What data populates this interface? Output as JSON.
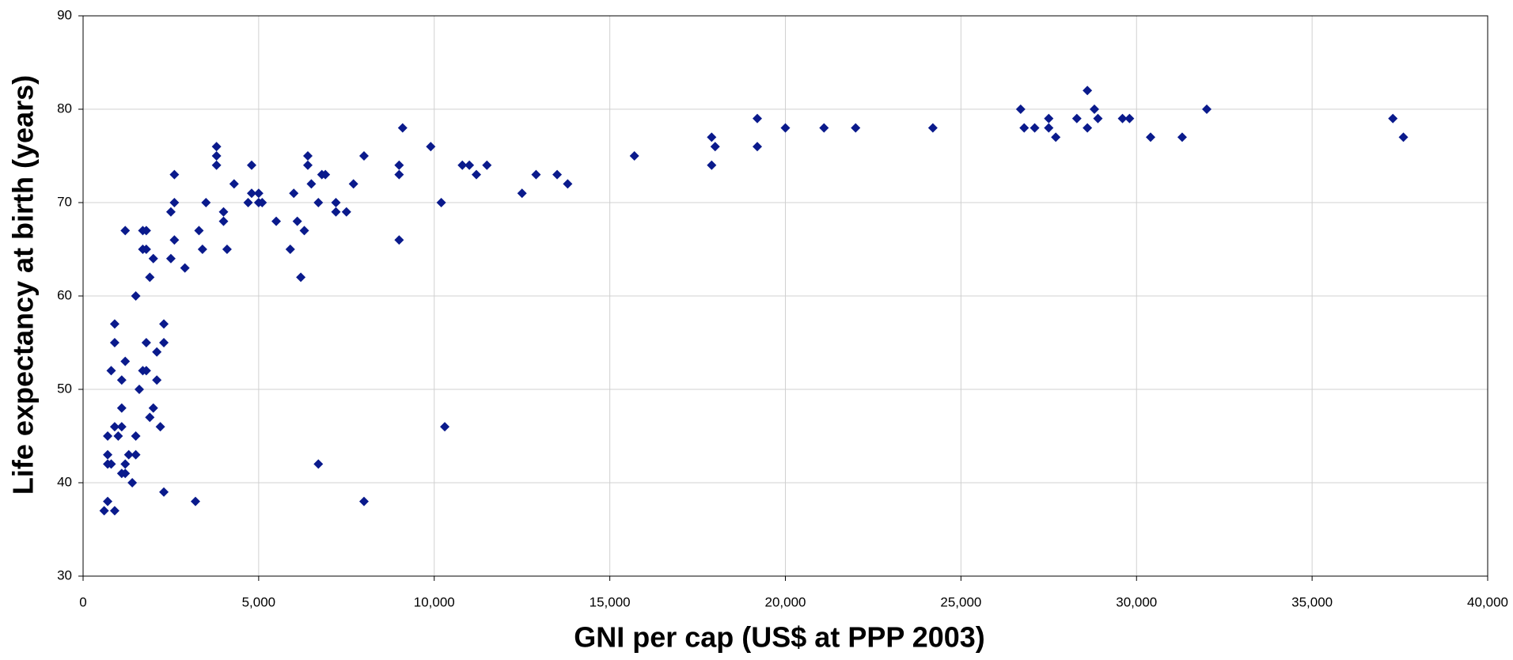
{
  "chart_data": {
    "type": "scatter",
    "x_label": "GNI per cap (US$ at PPP 2003)",
    "y_label": "Life expectancy at birth (years)",
    "color": "#0a1a8c",
    "grid": true,
    "xlim": [
      0,
      40000
    ],
    "xticks": [
      0,
      {
        "value": 5000,
        "label": "5,000"
      },
      {
        "value": 10000,
        "label": "10,000"
      },
      {
        "value": 15000,
        "label": "15,000"
      },
      {
        "value": 20000,
        "label": "20,000"
      },
      {
        "value": 25000,
        "label": "25,000"
      },
      {
        "value": 30000,
        "label": "30,000"
      },
      {
        "value": 35000,
        "label": "35,000"
      },
      {
        "value": 40000,
        "label": "40,000"
      }
    ],
    "ylim": [
      30,
      90
    ],
    "yticks": [
      30,
      40,
      50,
      60,
      70,
      80,
      90
    ],
    "x": [
      600,
      700,
      900,
      700,
      800,
      700,
      700,
      900,
      1000,
      1100,
      1100,
      1200,
      1200,
      1300,
      1400,
      1500,
      1500,
      1100,
      1100,
      1200,
      800,
      900,
      900,
      1600,
      1700,
      1800,
      1800,
      1900,
      2000,
      2100,
      2100,
      2200,
      2300,
      2300,
      2300,
      1500,
      1900,
      1800,
      1700,
      2000,
      1200,
      1800,
      1700,
      2500,
      2600,
      2500,
      2600,
      2600,
      2900,
      3200,
      3300,
      3400,
      3500,
      3800,
      3800,
      3800,
      4000,
      4000,
      4100,
      4300,
      4700,
      4800,
      4800,
      5000,
      5000,
      5100,
      5500,
      5900,
      6000,
      6100,
      6200,
      6300,
      6400,
      6400,
      6500,
      6700,
      6700,
      6800,
      6900,
      7200,
      7200,
      7500,
      7700,
      8000,
      8000,
      9000,
      9000,
      9000,
      9100,
      9900,
      10200,
      10300,
      10800,
      11000,
      11200,
      11500,
      12500,
      12900,
      13500,
      13800,
      15700,
      17900,
      17900,
      18000,
      19200,
      19200,
      20000,
      21100,
      22000,
      24200,
      26700,
      26800,
      27100,
      27500,
      27500,
      27700,
      28300,
      28600,
      28600,
      28800,
      28900,
      29600,
      29800,
      30400,
      31300,
      32000,
      37300,
      37600
    ],
    "values": [
      37,
      38,
      37,
      42,
      42,
      43,
      45,
      46,
      45,
      46,
      41,
      41,
      42,
      43,
      40,
      43,
      45,
      48,
      51,
      53,
      52,
      55,
      57,
      50,
      52,
      52,
      55,
      47,
      48,
      51,
      54,
      46,
      55,
      57,
      39,
      60,
      62,
      65,
      65,
      64,
      67,
      67,
      67,
      64,
      66,
      69,
      70,
      73,
      63,
      38,
      67,
      65,
      70,
      74,
      75,
      76,
      69,
      68,
      65,
      72,
      70,
      74,
      71,
      71,
      70,
      70,
      68,
      65,
      71,
      68,
      62,
      67,
      74,
      75,
      72,
      42,
      70,
      73,
      73,
      70,
      69,
      69,
      72,
      75,
      38,
      74,
      73,
      66,
      78,
      76,
      70,
      46,
      74,
      74,
      73,
      74,
      71,
      73,
      73,
      72,
      75,
      77,
      74,
      76,
      79,
      76,
      78,
      78,
      78,
      78,
      80,
      78,
      78,
      79,
      78,
      77,
      79,
      82,
      78,
      80,
      79,
      79,
      79,
      77,
      77,
      80,
      79,
      77
    ]
  }
}
